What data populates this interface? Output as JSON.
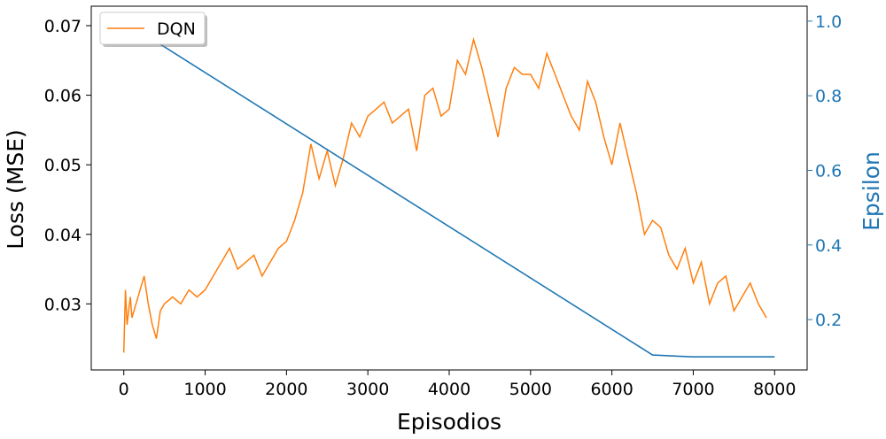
{
  "chart_data": {
    "type": "line",
    "title": "",
    "xlabel": "Episodios",
    "ylabel_left": "Loss (MSE)",
    "ylabel_right": "Epsilon",
    "xlim": [
      -400,
      8400
    ],
    "ylim_left": [
      0.0205,
      0.0728
    ],
    "ylim_right": [
      0.065,
      1.04
    ],
    "xticks": [
      0,
      1000,
      2000,
      3000,
      4000,
      5000,
      6000,
      7000,
      8000
    ],
    "yticks_left": [
      0.03,
      0.04,
      0.05,
      0.06,
      0.07
    ],
    "yticks_right": [
      0.2,
      0.4,
      0.6,
      0.8,
      1.0
    ],
    "yticks_left_labels": [
      "0.03",
      "0.04",
      "0.05",
      "0.06",
      "0.07"
    ],
    "yticks_right_labels": [
      "0.2",
      "0.4",
      "0.6",
      "0.8",
      "1.0"
    ],
    "legend": {
      "placement": "top-left",
      "entries": [
        "DQN"
      ]
    },
    "colors": {
      "loss": "#ff7f0e",
      "epsilon": "#1f77b4",
      "axis": "#000000"
    },
    "series": [
      {
        "name": "DQN",
        "axis": "left",
        "color": "#ff7f0e",
        "x": [
          0,
          20,
          40,
          60,
          80,
          100,
          150,
          200,
          250,
          300,
          350,
          400,
          450,
          500,
          600,
          700,
          800,
          900,
          1000,
          1100,
          1200,
          1300,
          1400,
          1500,
          1600,
          1700,
          1800,
          1900,
          2000,
          2100,
          2200,
          2300,
          2400,
          2500,
          2600,
          2700,
          2800,
          2900,
          3000,
          3100,
          3200,
          3300,
          3400,
          3500,
          3600,
          3700,
          3800,
          3900,
          4000,
          4100,
          4200,
          4300,
          4400,
          4500,
          4600,
          4700,
          4800,
          4900,
          5000,
          5100,
          5200,
          5300,
          5400,
          5500,
          5600,
          5700,
          5800,
          5900,
          6000,
          6100,
          6200,
          6300,
          6400,
          6500,
          6600,
          6700,
          6800,
          6900,
          7000,
          7100,
          7200,
          7300,
          7400,
          7500,
          7600,
          7700,
          7800,
          7900
        ],
        "values": [
          0.023,
          0.032,
          0.027,
          0.029,
          0.031,
          0.028,
          0.03,
          0.032,
          0.034,
          0.03,
          0.027,
          0.025,
          0.029,
          0.03,
          0.031,
          0.03,
          0.032,
          0.031,
          0.032,
          0.034,
          0.036,
          0.038,
          0.035,
          0.036,
          0.037,
          0.034,
          0.036,
          0.038,
          0.039,
          0.042,
          0.046,
          0.053,
          0.048,
          0.052,
          0.047,
          0.051,
          0.056,
          0.054,
          0.057,
          0.058,
          0.059,
          0.056,
          0.057,
          0.058,
          0.052,
          0.06,
          0.061,
          0.057,
          0.058,
          0.065,
          0.063,
          0.068,
          0.064,
          0.059,
          0.054,
          0.061,
          0.064,
          0.063,
          0.063,
          0.061,
          0.066,
          0.063,
          0.06,
          0.057,
          0.055,
          0.062,
          0.059,
          0.054,
          0.05,
          0.056,
          0.051,
          0.046,
          0.04,
          0.042,
          0.041,
          0.037,
          0.035,
          0.038,
          0.033,
          0.036,
          0.03,
          0.033,
          0.034,
          0.029,
          0.031,
          0.033,
          0.03,
          0.028
        ]
      },
      {
        "name": "Epsilon",
        "axis": "right",
        "color": "#1f77b4",
        "x": [
          0,
          6500,
          7000,
          8000
        ],
        "values": [
          1.0,
          0.105,
          0.1,
          0.1
        ]
      }
    ]
  }
}
